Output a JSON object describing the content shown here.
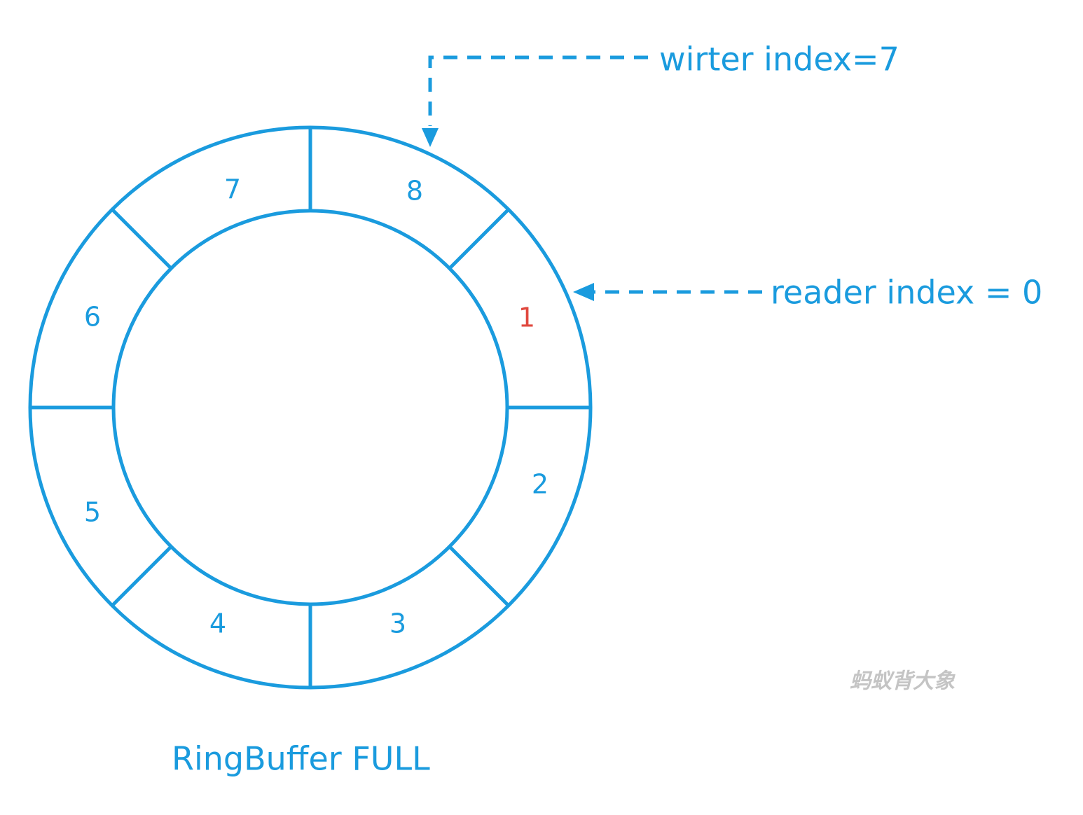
{
  "diagram": {
    "slots": [
      {
        "label": "8",
        "highlight": false
      },
      {
        "label": "1",
        "highlight": true
      },
      {
        "label": "2",
        "highlight": false
      },
      {
        "label": "3",
        "highlight": false
      },
      {
        "label": "4",
        "highlight": false
      },
      {
        "label": "5",
        "highlight": false
      },
      {
        "label": "6",
        "highlight": false
      },
      {
        "label": "7",
        "highlight": false
      }
    ],
    "writer_label": "wirter index=7",
    "reader_label": "reader index = 0",
    "caption": "RingBuffer FULL",
    "watermark": "蚂蚁背大象",
    "colors": {
      "line": "#1a9bde",
      "highlight": "#e0483e",
      "watermark": "#c4c4c4"
    }
  }
}
